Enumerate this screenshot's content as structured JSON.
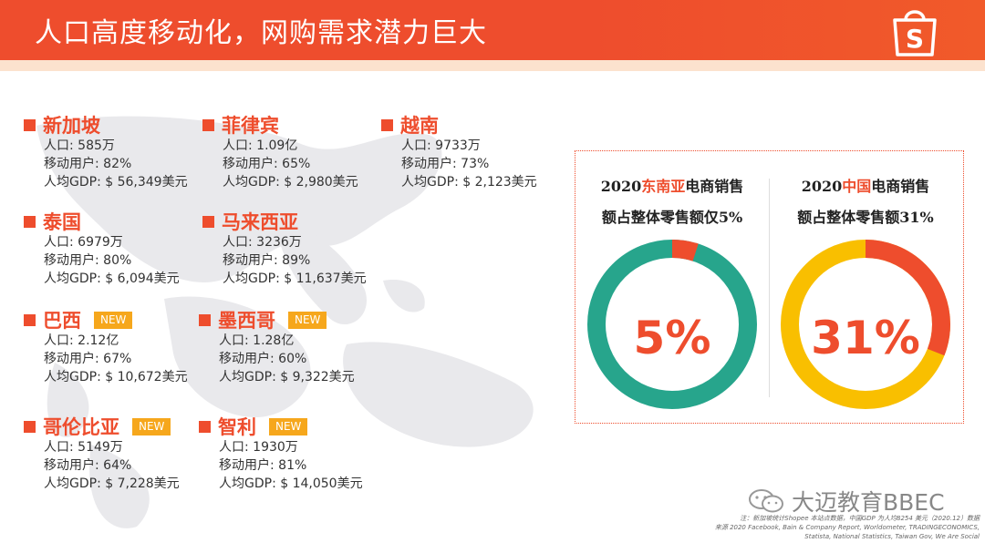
{
  "header": {
    "title": "人口高度移动化，网购需求潜力巨大",
    "logo_letter": "S"
  },
  "countries": [
    {
      "name": "新加坡",
      "population": "人口: 585万",
      "mobile": "移动用户: 82%",
      "gdp": "人均GDP: $ 56,349美元",
      "is_new": false
    },
    {
      "name": "菲律宾",
      "population": "人口: 1.09亿",
      "mobile": "移动用户: 65%",
      "gdp": "人均GDP: $ 2,980美元",
      "is_new": false
    },
    {
      "name": "越南",
      "population": "人口: 9733万",
      "mobile": "移动用户: 73%",
      "gdp": "人均GDP: $ 2,123美元",
      "is_new": false
    },
    {
      "name": "泰国",
      "population": "人口: 6979万",
      "mobile": "移动用户: 80%",
      "gdp": "人均GDP: $ 6,094美元",
      "is_new": false
    },
    {
      "name": "马来西亚",
      "population": "人口: 3236万",
      "mobile": "移动用户: 89%",
      "gdp": "人均GDP: $ 11,637美元",
      "is_new": false
    },
    {
      "name": "巴西",
      "population": "人口: 2.12亿",
      "mobile": "移动用户: 67%",
      "gdp": "人均GDP: $ 10,672美元",
      "is_new": true
    },
    {
      "name": "墨西哥",
      "population": "人口: 1.28亿",
      "mobile": "移动用户: 60%",
      "gdp": "人均GDP: $ 9,322美元",
      "is_new": true
    },
    {
      "name": "哥伦比亚",
      "population": "人口: 5149万",
      "mobile": "移动用户: 64%",
      "gdp": "人均GDP: $ 7,228美元",
      "is_new": true
    },
    {
      "name": "智利",
      "population": "人口: 1930万",
      "mobile": "移动用户: 81%",
      "gdp": "人均GDP: $ 14,050美元",
      "is_new": true
    }
  ],
  "badges": {
    "new_label": "NEW"
  },
  "panel": {
    "left": {
      "line1_prefix": "2020",
      "line1_highlight": "东南亚",
      "line1_suffix": "电商销售",
      "line2": "额占整体零售额仅5%",
      "percent_label": "5%",
      "share": 5,
      "color_main": "#27a58c",
      "color_share": "#ee4d2d"
    },
    "right": {
      "line1_prefix": "2020",
      "line1_highlight": "中国",
      "line1_suffix": "电商销售",
      "line2": "额占整体零售额31%",
      "percent_label": "31%",
      "share": 31,
      "color_main": "#f9bf00",
      "color_share": "#ee4d2d"
    }
  },
  "watermark": {
    "text": "大迈教育BBEC"
  },
  "source": {
    "line1": "注：新加坡统计Shopee 本站点数据，中国GDP 为人均8254 美元（2020.12）数据",
    "line2": "来源 2020 Facebook, Bain & Company Report, Worldometer, TRADINGECONOMICS,",
    "line3": "Statista, National Statistics, Taiwan Gov, We Are Social"
  },
  "colors": {
    "accent": "#ee4d2d",
    "badge": "#f6a71c"
  }
}
